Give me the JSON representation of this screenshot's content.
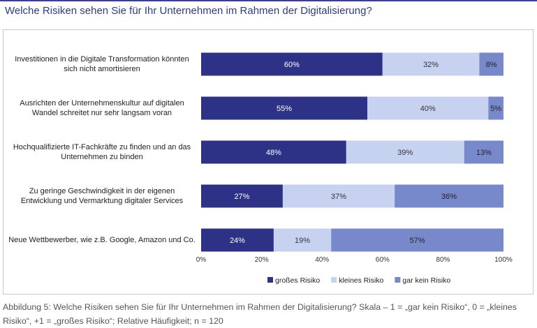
{
  "title": "Welche Risiken sehen Sie für Ihr Unternehmen im Rahmen der Digitalisierung?",
  "caption": "Abbildung 5: Welche Risiken sehen Sie für Ihr Unternehmen im Rahmen der Digitalisierung? Skala – 1 = „gar kein Risiko“, 0 = „kleines Risiko“, +1 = „großes Risiko“; Relative Häufigkeit; n = 120",
  "chart_data": {
    "type": "bar",
    "orientation": "horizontal",
    "stacked": true,
    "categories": [
      "Investitionen in die Digitale Transformation könnten sich nicht amortisieren",
      "Ausrichten der Unternehmenskultur auf digitalen Wandel schreitet nur sehr langsam voran",
      "Hochqualifizierte IT-Fachkräfte zu finden und an das Unternehmen zu binden",
      "Zu geringe Geschwindigkeit in der eigenen Entwicklung und Vermarktung digitaler Services",
      "Neue Wettbewerber, wie z.B. Google, Amazon und Co."
    ],
    "series": [
      {
        "name": "großes Risiko",
        "color": "#2e3286",
        "label_color": "#ffffff",
        "values": [
          60,
          55,
          48,
          27,
          24
        ]
      },
      {
        "name": "kleines Risiko",
        "color": "#c6d2ef",
        "label_color": "#333333",
        "values": [
          32,
          40,
          39,
          37,
          19
        ]
      },
      {
        "name": "gar kein Risiko",
        "color": "#7889cb",
        "label_color": "#222222",
        "values": [
          8,
          5,
          13,
          36,
          57
        ]
      }
    ],
    "xlim": [
      0,
      100
    ],
    "x_ticks": [
      "0%",
      "20%",
      "40%",
      "60%",
      "80%",
      "100%"
    ],
    "value_suffix": "%",
    "legend_position": "bottom-right",
    "grid": false
  }
}
